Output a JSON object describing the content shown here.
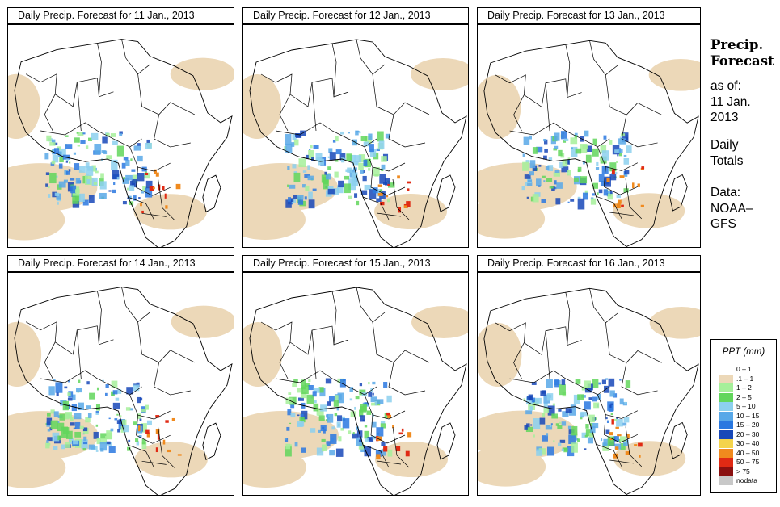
{
  "panels": [
    {
      "title": "Daily Precip. Forecast for  11 Jan., 2013"
    },
    {
      "title": "Daily Precip. Forecast for  12 Jan., 2013"
    },
    {
      "title": "Daily Precip. Forecast for  13 Jan., 2013"
    },
    {
      "title": "Daily Precip. Forecast for  14 Jan., 2013"
    },
    {
      "title": "Daily Precip. Forecast for  15 Jan., 2013"
    },
    {
      "title": "Daily Precip. Forecast for  16 Jan., 2013"
    }
  ],
  "side": {
    "title_line1": "Precip.",
    "title_line2": "Forecast",
    "asof_line1": "as of:",
    "asof_line2": "11 Jan.",
    "asof_line3": "2013",
    "totals_line1": "Daily",
    "totals_line2": "Totals",
    "data_line1": "Data:",
    "data_line2": "NOAA–",
    "data_line3": "GFS"
  },
  "legend": {
    "title": "PPT (mm)",
    "items": [
      {
        "label": "0 – 1",
        "color": "#ffffff"
      },
      {
        "label": ".1 – 1",
        "color": "#ecd8b8"
      },
      {
        "label": "1 – 2",
        "color": "#a6f09a"
      },
      {
        "label": "2 – 5",
        "color": "#62d65c"
      },
      {
        "label": "5 – 10",
        "color": "#8cd0ee"
      },
      {
        "label": "10 – 15",
        "color": "#58a8e8"
      },
      {
        "label": "15 – 20",
        "color": "#2a78e0"
      },
      {
        "label": "20 – 30",
        "color": "#1848b8"
      },
      {
        "label": "30 – 40",
        "color": "#f4d44c"
      },
      {
        "label": "40 – 50",
        "color": "#f08a1e"
      },
      {
        "label": "50 – 75",
        "color": "#e02a14"
      },
      {
        "label": "> 75",
        "color": "#8a1010"
      },
      {
        "label": "nodata",
        "color": "#c8c8c8"
      }
    ]
  }
}
